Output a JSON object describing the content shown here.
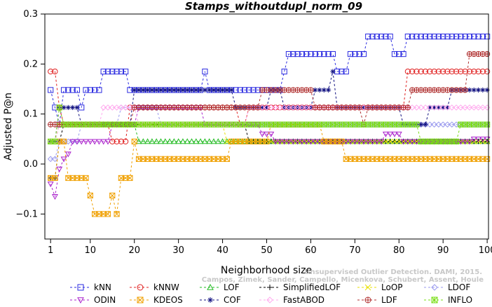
{
  "chart_data": {
    "type": "line",
    "title": "Stamps_withoutdupl_norm_09",
    "xlabel": "Neighborhood size",
    "ylabel": "Adjusted P@n",
    "xlim": [
      1,
      100
    ],
    "ylim": [
      -0.15,
      0.3
    ],
    "x_ticks": [
      1,
      10,
      20,
      30,
      40,
      50,
      60,
      70,
      80,
      90,
      100
    ],
    "y_ticks": [
      -0.1,
      0.0,
      0.1,
      0.2,
      0.3
    ],
    "y_tick_labels": [
      "−0.1",
      "0.0",
      "0.1",
      "0.2",
      "0.3"
    ],
    "legend_position": "bottom",
    "watermark": [
      "Unsupervised Outlier Detection. DAMI, 2015.",
      "Campos, Zimek, Sander, Campello, Micenkova, Schubert, Assent, Houle"
    ],
    "series": [
      {
        "name": "kNN",
        "color": "#2a2ae0",
        "marker": "square",
        "points": [
          [
            1,
            0.148
          ],
          [
            2,
            0.113
          ],
          [
            3,
            0.079
          ],
          [
            4,
            0.148
          ],
          [
            8,
            0.113
          ],
          [
            9,
            0.148
          ],
          [
            12,
            0.148
          ],
          [
            13,
            0.185
          ],
          [
            18,
            0.185
          ],
          [
            19,
            0.148
          ],
          [
            35,
            0.148
          ],
          [
            36,
            0.185
          ],
          [
            37,
            0.148
          ],
          [
            53,
            0.148
          ],
          [
            54,
            0.185
          ],
          [
            55,
            0.22
          ],
          [
            65,
            0.22
          ],
          [
            66,
            0.185
          ],
          [
            68,
            0.185
          ],
          [
            69,
            0.22
          ],
          [
            72,
            0.22
          ],
          [
            73,
            0.255
          ],
          [
            78,
            0.255
          ],
          [
            79,
            0.22
          ],
          [
            81,
            0.22
          ],
          [
            82,
            0.255
          ],
          [
            100,
            0.255
          ]
        ]
      },
      {
        "name": "kNNW",
        "color": "#e02020",
        "marker": "circle",
        "points": [
          [
            1,
            0.185
          ],
          [
            2,
            0.185
          ],
          [
            3,
            0.113
          ],
          [
            4,
            0.079
          ],
          [
            14,
            0.079
          ],
          [
            15,
            0.045
          ],
          [
            18,
            0.045
          ],
          [
            19,
            0.113
          ],
          [
            43,
            0.113
          ],
          [
            44,
            0.079
          ],
          [
            45,
            0.079
          ],
          [
            46,
            0.113
          ],
          [
            81,
            0.113
          ],
          [
            82,
            0.185
          ],
          [
            100,
            0.185
          ]
        ]
      },
      {
        "name": "LOF",
        "color": "#22bb22",
        "marker": "triangle-up",
        "points": [
          [
            1,
            0.045
          ],
          [
            2,
            0.045
          ],
          [
            3,
            0.079
          ],
          [
            20,
            0.079
          ],
          [
            21,
            0.045
          ],
          [
            100,
            0.045
          ]
        ]
      },
      {
        "name": "SimplifiedLOF",
        "color": "#000000",
        "marker": "plus",
        "points": [
          [
            1,
            -0.028
          ],
          [
            2,
            -0.028
          ],
          [
            3,
            0.045
          ],
          [
            4,
            0.079
          ],
          [
            45,
            0.079
          ],
          [
            46,
            0.045
          ],
          [
            100,
            0.045
          ]
        ]
      },
      {
        "name": "LoOP",
        "color": "#e8e000",
        "marker": "cross",
        "points": [
          [
            1,
            0.045
          ],
          [
            3,
            0.079
          ],
          [
            40,
            0.079
          ],
          [
            41,
            0.045
          ],
          [
            100,
            0.045
          ]
        ]
      },
      {
        "name": "LDOF",
        "color": "#9999ee",
        "marker": "diamond",
        "points": [
          [
            1,
            0.01
          ],
          [
            2,
            0.01
          ],
          [
            3,
            0.045
          ],
          [
            7,
            0.045
          ],
          [
            8,
            0.079
          ],
          [
            16,
            0.079
          ],
          [
            17,
            0.113
          ],
          [
            25,
            0.113
          ],
          [
            26,
            0.079
          ],
          [
            100,
            0.079
          ]
        ]
      },
      {
        "name": "ODIN",
        "color": "#aa22cc",
        "marker": "triangle-down",
        "points": [
          [
            1,
            -0.04
          ],
          [
            2,
            -0.065
          ],
          [
            3,
            -0.01
          ],
          [
            4,
            0.01
          ],
          [
            5,
            0.02
          ],
          [
            6,
            0.045
          ],
          [
            14,
            0.045
          ],
          [
            15,
            0.079
          ],
          [
            20,
            0.079
          ],
          [
            21,
            0.113
          ],
          [
            35,
            0.113
          ],
          [
            36,
            0.079
          ],
          [
            48,
            0.079
          ],
          [
            49,
            0.06
          ],
          [
            51,
            0.06
          ],
          [
            52,
            0.045
          ],
          [
            76,
            0.045
          ],
          [
            77,
            0.06
          ],
          [
            80,
            0.06
          ],
          [
            81,
            0.045
          ],
          [
            96,
            0.045
          ],
          [
            97,
            0.05
          ],
          [
            100,
            0.05
          ]
        ]
      },
      {
        "name": "KDEOS",
        "color": "#f0a000",
        "marker": "square-x",
        "points": [
          [
            1,
            -0.028
          ],
          [
            3,
            0.045
          ],
          [
            5,
            -0.028
          ],
          [
            9,
            -0.028
          ],
          [
            10,
            -0.063
          ],
          [
            11,
            -0.1
          ],
          [
            14,
            -0.1
          ],
          [
            15,
            -0.063
          ],
          [
            16,
            -0.1
          ],
          [
            17,
            -0.028
          ],
          [
            19,
            -0.028
          ],
          [
            20,
            0.045
          ],
          [
            21,
            0.01
          ],
          [
            41,
            0.01
          ],
          [
            42,
            0.045
          ],
          [
            50,
            0.045
          ],
          [
            51,
            0.079
          ],
          [
            62,
            0.079
          ],
          [
            63,
            0.045
          ],
          [
            67,
            0.045
          ],
          [
            68,
            0.01
          ],
          [
            100,
            0.01
          ]
        ]
      },
      {
        "name": "COF",
        "color": "#101080",
        "marker": "star",
        "points": [
          [
            1,
            0.045
          ],
          [
            3,
            0.113
          ],
          [
            7,
            0.113
          ],
          [
            8,
            0.079
          ],
          [
            19,
            0.079
          ],
          [
            20,
            0.148
          ],
          [
            42,
            0.148
          ],
          [
            43,
            0.113
          ],
          [
            50,
            0.113
          ],
          [
            51,
            0.148
          ],
          [
            53,
            0.148
          ],
          [
            54,
            0.113
          ],
          [
            60,
            0.113
          ],
          [
            61,
            0.148
          ],
          [
            64,
            0.148
          ],
          [
            65,
            0.185
          ],
          [
            66,
            0.113
          ],
          [
            80,
            0.113
          ],
          [
            81,
            0.079
          ],
          [
            86,
            0.079
          ],
          [
            87,
            0.113
          ],
          [
            91,
            0.113
          ],
          [
            92,
            0.148
          ],
          [
            100,
            0.148
          ]
        ]
      },
      {
        "name": "FastABOD",
        "color": "#ffaaee",
        "marker": "diamond",
        "points": [
          [
            1,
            0.045
          ],
          [
            3,
            0.079
          ],
          [
            12,
            0.079
          ],
          [
            13,
            0.113
          ],
          [
            20,
            0.113
          ],
          [
            21,
            0.079
          ],
          [
            45,
            0.079
          ],
          [
            46,
            0.113
          ],
          [
            100,
            0.113
          ]
        ]
      },
      {
        "name": "LDF",
        "color": "#b03030",
        "marker": "circle-plus",
        "points": [
          [
            1,
            0.079
          ],
          [
            19,
            0.079
          ],
          [
            20,
            0.113
          ],
          [
            42,
            0.113
          ],
          [
            43,
            0.113
          ],
          [
            44,
            0.113
          ],
          [
            48,
            0.113
          ],
          [
            49,
            0.148
          ],
          [
            60,
            0.148
          ],
          [
            61,
            0.113
          ],
          [
            71,
            0.113
          ],
          [
            72,
            0.079
          ],
          [
            73,
            0.113
          ],
          [
            82,
            0.113
          ],
          [
            83,
            0.148
          ],
          [
            95,
            0.148
          ],
          [
            96,
            0.22
          ],
          [
            100,
            0.22
          ]
        ]
      },
      {
        "name": "INFLO",
        "color": "#77dd11",
        "marker": "star-box",
        "points": [
          [
            1,
            0.045
          ],
          [
            3,
            0.113
          ],
          [
            4,
            0.079
          ],
          [
            84,
            0.079
          ],
          [
            85,
            0.045
          ],
          [
            93,
            0.045
          ],
          [
            94,
            0.079
          ],
          [
            100,
            0.079
          ]
        ]
      }
    ]
  }
}
